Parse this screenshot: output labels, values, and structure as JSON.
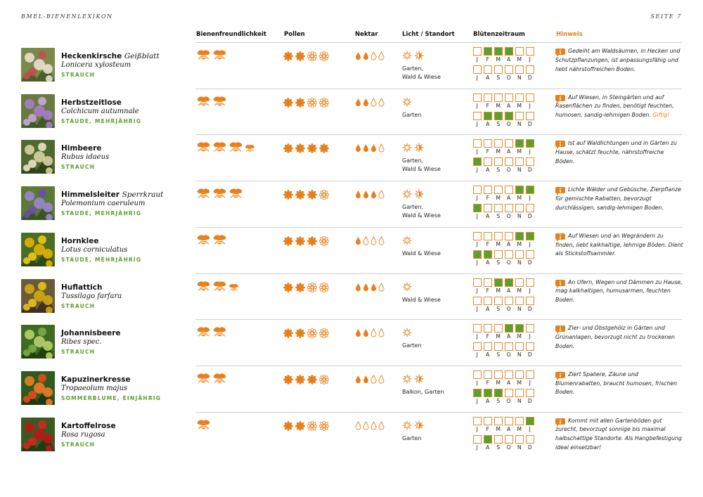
{
  "running_head": {
    "left": "BMEL-BIENENLEXIKON",
    "right": "SEITE 7"
  },
  "columns": {
    "bee_friendliness": "Bienenfreundlichkeit",
    "pollen": "Pollen",
    "nectar": "Nektar",
    "light": "Licht / Standort",
    "bloom": "Blütenzeitraum",
    "note": "Hinweis"
  },
  "month_labels": {
    "first_half": [
      "J",
      "F",
      "M",
      "A",
      "M",
      "J"
    ],
    "second_half": [
      "J",
      "A",
      "S",
      "O",
      "N",
      "D"
    ]
  },
  "colors": {
    "accent_orange": "#e8801a",
    "bloom_green": "#5aa02c",
    "category_green": "#5aa02c"
  },
  "plants": [
    {
      "name": "Heckenkirsche",
      "alt_name": "Geißblatt",
      "latin": "Lonicera xylosteum",
      "category": "STRAUCH",
      "bees": 2,
      "bees_small": 0,
      "pollen": 2,
      "nectar": 2,
      "sun": "sun,halfshade",
      "location": "Garten,\nWald & Wiese",
      "bloom": [
        0,
        1,
        1,
        1,
        0,
        0,
        0,
        0,
        0,
        0,
        0,
        0
      ],
      "note": "Gedeiht am Waldsäumen, in Hecken und Schutzpflanzungen, ist anpassungsfähig und liebt nährstoffreichen Boden.",
      "warning": "",
      "icon": "heckenkirsche-photo"
    },
    {
      "name": "Herbstzeitlose",
      "alt_name": "",
      "latin": "Colchicum autumnale",
      "category": "STAUDE, MEHRJÄHRIG",
      "bees": 2,
      "bees_small": 0,
      "pollen": 2,
      "nectar": 2,
      "sun": "sun",
      "location": "Garten",
      "bloom": [
        0,
        0,
        0,
        0,
        0,
        0,
        0,
        1,
        1,
        1,
        0,
        0
      ],
      "note": "Auf Wiesen, in Steingärten und auf Rasenflächen zu finden, benötigt feuchten, humosen, sandig-lehmigen Boden.",
      "warning": "Giftig!",
      "icon": "herbstzeitlose-photo"
    },
    {
      "name": "Himbeere",
      "alt_name": "",
      "latin": "Rubus idaeus",
      "category": "STRAUCH",
      "bees": 3,
      "bees_small": 1,
      "pollen": 4,
      "nectar": 3,
      "sun": "sun,halfshade",
      "location": "Garten,\nWald & Wiese",
      "bloom": [
        0,
        0,
        0,
        0,
        1,
        1,
        1,
        0,
        0,
        0,
        0,
        0
      ],
      "note": "Ist auf Waldlichtungen und in Gärten zu Hause, schätzt feuchte, nährstoffreiche Böden.",
      "warning": "",
      "icon": "himbeere-photo"
    },
    {
      "name": "Himmelsleiter",
      "alt_name": "Sperrkraut",
      "latin": "Polemonium caeruleum",
      "category": "STAUDE, MEHRJÄHRIG",
      "bees": 3,
      "bees_small": 0,
      "pollen": 3,
      "nectar": 3,
      "sun": "sun,halfshade",
      "location": "Garten,\nWald & Wiese",
      "bloom": [
        0,
        0,
        0,
        0,
        1,
        1,
        1,
        0,
        0,
        0,
        0,
        0
      ],
      "note": "Lichte Wälder und Gebüsche, Zierpflanze für gemischte Rabatten, bevorzugt durchlässigen, sandig-lehmigen Boden.",
      "warning": "",
      "icon": "himmelsleiter-photo"
    },
    {
      "name": "Hornklee",
      "alt_name": "",
      "latin": "Lotus corniculatus",
      "category": "STAUDE, MEHRJÄHRIG",
      "bees": 2,
      "bees_small": 0,
      "pollen": 3,
      "nectar": 1,
      "sun": "sun",
      "location": "Wald & Wiese",
      "bloom": [
        0,
        0,
        0,
        0,
        1,
        1,
        1,
        1,
        0,
        0,
        0,
        0
      ],
      "note": "Auf Wiesen und an Wegrändern zu finden, liebt kalkhaltige, lehmige Böden. Dient als Stickstoffsammler.",
      "warning": "",
      "icon": "hornklee-photo"
    },
    {
      "name": "Huflattich",
      "alt_name": "",
      "latin": "Tussilago farfara",
      "category": "STRAUCH",
      "bees": 2,
      "bees_small": 1,
      "pollen": 2,
      "nectar": 3,
      "sun": "sun",
      "location": "Wald & Wiese",
      "bloom": [
        0,
        0,
        1,
        1,
        0,
        0,
        0,
        0,
        0,
        0,
        0,
        0
      ],
      "note": "An Ufern, Wegen und Dämmen zu Hause, mag kalkhaltigen, humusarmen, feuchten Boden.",
      "warning": "",
      "icon": "huflattich-photo"
    },
    {
      "name": "Johannisbeere",
      "alt_name": "",
      "latin": "Ribes spec.",
      "category": "STRAUCH",
      "bees": 2,
      "bees_small": 0,
      "pollen": 2,
      "nectar": 2,
      "sun": "sun",
      "location": "Garten",
      "bloom": [
        0,
        0,
        0,
        1,
        1,
        0,
        0,
        0,
        0,
        0,
        0,
        0
      ],
      "note": "Zier- und Obstgehölz in Gärten und Grünanlagen, bevorzugt nicht zu trockenen Boden.",
      "warning": "",
      "icon": "johannisbeere-photo"
    },
    {
      "name": "Kapuzinerkresse",
      "alt_name": "",
      "latin": "Tropaeolum majus",
      "category": "SOMMERBLUME, EINJÄHRIG",
      "bees": 2,
      "bees_small": 0,
      "pollen": 3,
      "nectar": 2,
      "sun": "sun,halfshade",
      "location": "Balkon, Garten",
      "bloom": [
        0,
        0,
        0,
        0,
        0,
        0,
        1,
        1,
        1,
        0,
        0,
        0
      ],
      "note": "Ziert Spaliere, Zäune und Blumenrabatten, braucht humosen, frischen Boden.",
      "warning": "",
      "icon": "kapuzinerkresse-photo"
    },
    {
      "name": "Kartoffelrose",
      "alt_name": "",
      "latin": "Rosa rugosa",
      "category": "STRAUCH",
      "bees": 1,
      "bees_small": 0,
      "pollen": 2,
      "nectar": 0,
      "sun": "sun,halfshade",
      "location": "Garten",
      "bloom": [
        0,
        0,
        0,
        0,
        0,
        1,
        0,
        1,
        0,
        0,
        0,
        0
      ],
      "note": "Kommt mit allen Gartenböden gut zurecht, bevorzugt sonnige bis maximal halbschattige Standorte. Als Hangbefestigung ideal einsetzbar!",
      "warning": "",
      "icon": "kartoffelrose-photo"
    }
  ]
}
